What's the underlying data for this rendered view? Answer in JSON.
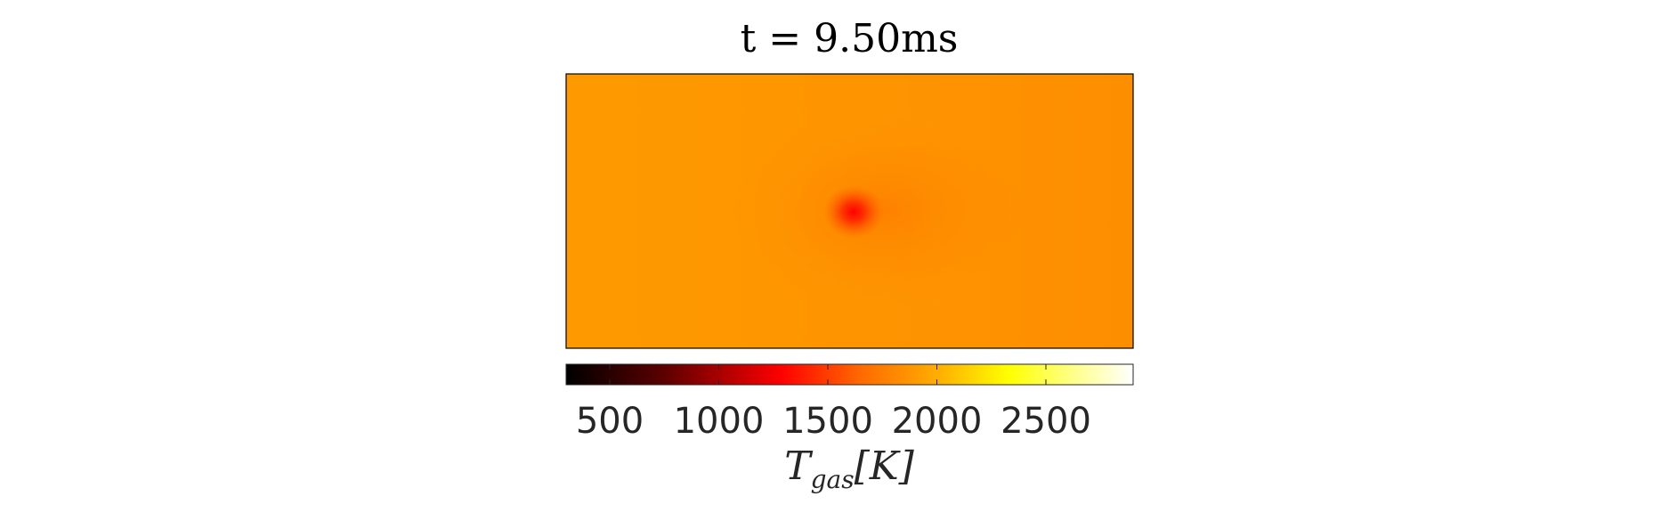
{
  "chart_data": {
    "type": "heatmap",
    "title": "t = 9.50ms",
    "colorbar": {
      "label": "T",
      "label_subscript": "gas",
      "label_unit": "[K]",
      "range": [
        300,
        2900
      ],
      "ticks": [
        500,
        1000,
        1500,
        2000,
        2500
      ],
      "tick_labels": [
        "500",
        "1000",
        "1500",
        "2000",
        "2500"
      ],
      "colormap": "hot",
      "stops": [
        "#000000",
        "#8b0000",
        "#ff0000",
        "#ff8c00",
        "#ffff00",
        "#ffffff"
      ]
    },
    "field": {
      "background_color": "#fe9a00",
      "right_side_color": "#fd8e00",
      "hotspot_color": "#ff0000",
      "hotspot_halo_color": "#fe7a00"
    },
    "xticks": [],
    "yticks": [],
    "grid": false
  }
}
